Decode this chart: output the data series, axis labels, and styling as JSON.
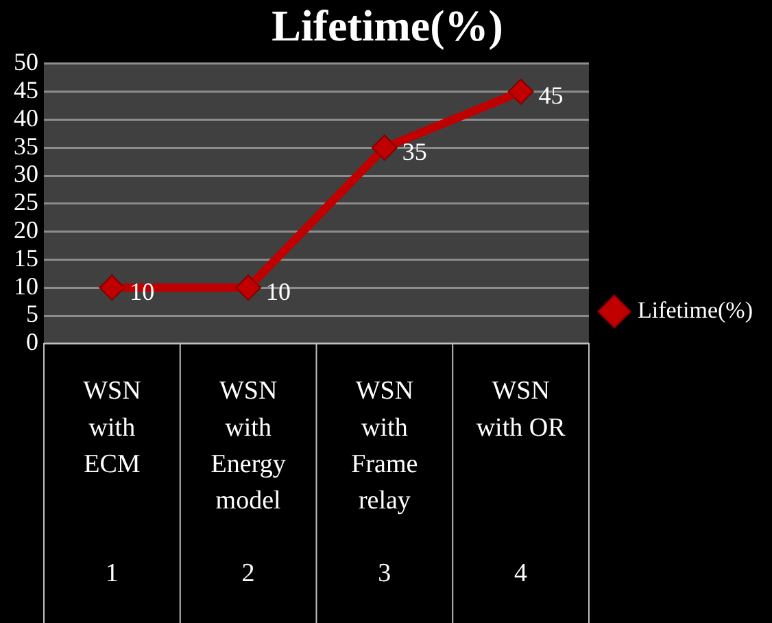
{
  "chart_data": {
    "type": "line",
    "title": "Lifetime(%)",
    "categories": [
      "WSN\nwith\nECM\n\n\n1",
      "WSN\nwith\nEnergy\nmodel\n\n2",
      "WSN\nwith\nFrame\nrelay\n\n3",
      "WSN\nwith OR\n\n\n\n4"
    ],
    "series": [
      {
        "name": "Lifetime(%)",
        "color": "#c00000",
        "values": [
          10,
          10,
          35,
          45
        ]
      }
    ],
    "ylim": [
      0,
      50
    ],
    "yticks": [
      0,
      5,
      10,
      15,
      20,
      25,
      30,
      35,
      40,
      45,
      50
    ],
    "grid": "y",
    "legend": "right",
    "marker": "diamond",
    "line_style": "solid",
    "data_labels": true
  }
}
